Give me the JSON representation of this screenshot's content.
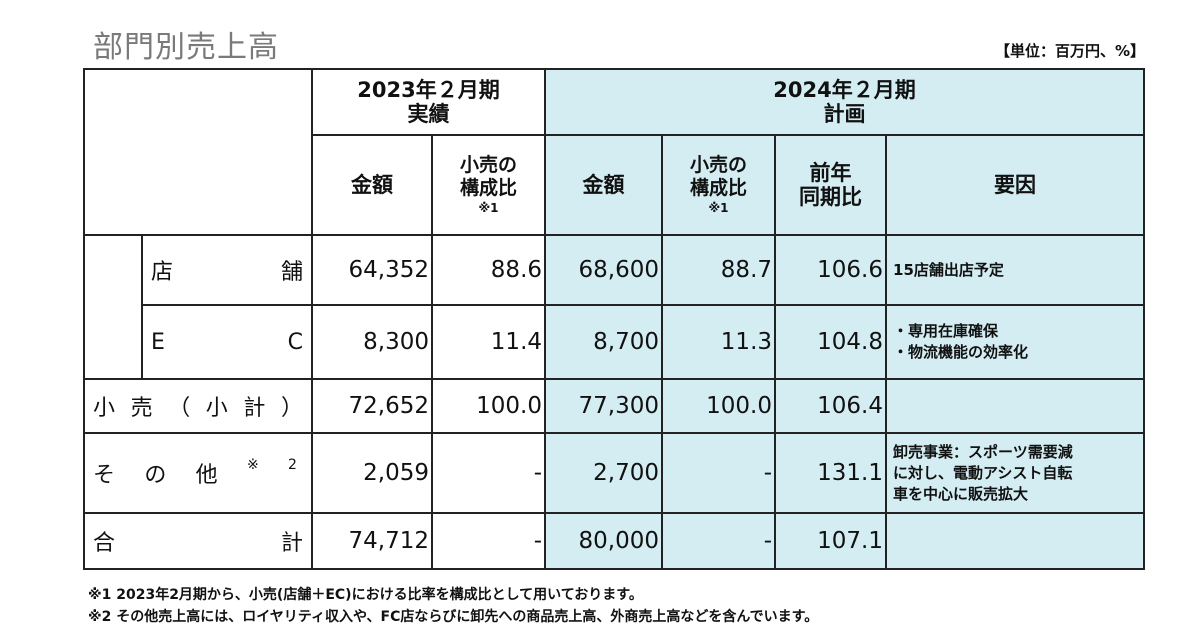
{
  "title": "部門別売上高",
  "unit": "【単位：百万円、%】",
  "header": {
    "fy2023_line1": "2023年２月期",
    "fy2023_line2": "実績",
    "fy2024_line1": "2024年２月期",
    "fy2024_line2": "計画",
    "amount": "金額",
    "ratio_line1": "小売の",
    "ratio_line2": "構成比",
    "ratio_note": "※1",
    "yoy_line1": "前年",
    "yoy_line2": "同期比",
    "factor": "要因"
  },
  "rows": {
    "store": {
      "label_left": "店",
      "label_right": "舗",
      "amt2023": "64,352",
      "ratio2023": "88.6",
      "amt2024": "68,600",
      "ratio2024": "88.7",
      "yoy": "106.6",
      "reason": "15店舗出店予定"
    },
    "ec": {
      "label_left": "E",
      "label_right": "C",
      "amt2023": "8,300",
      "ratio2023": "11.4",
      "amt2024": "8,700",
      "ratio2024": "11.3",
      "yoy": "104.8",
      "reason1": "・専用在庫確保",
      "reason2": "・物流機能の効率化"
    },
    "subtotal": {
      "c1": "小",
      "c2": "売",
      "c3": "（",
      "c4": "小",
      "c5": "計",
      "c6": "）",
      "amt2023": "72,652",
      "ratio2023": "100.0",
      "amt2024": "77,300",
      "ratio2024": "100.0",
      "yoy": "106.4"
    },
    "other": {
      "c1": "そ",
      "c2": "の",
      "c3": "他",
      "mark": "※",
      "mark_num": "2",
      "amt2023": "2,059",
      "ratio2023": "-",
      "amt2024": "2,700",
      "ratio2024": "-",
      "yoy": "131.1",
      "reason1": "卸売事業：スポーツ需要減",
      "reason2": "に対し、電動アシスト自転",
      "reason3": "車を中心に販売拡大"
    },
    "total": {
      "label_left": "合",
      "label_right": "計",
      "amt2023": "74,712",
      "ratio2023": "-",
      "amt2024": "80,000",
      "ratio2024": "-",
      "yoy": "107.1"
    }
  },
  "footnotes": {
    "note1": "※1 2023年2月期から、小売(店舗＋EC)における比率を構成比として用いております。",
    "note2": "※2 その他売上高には、ロイヤリティ収入や、FC店ならびに卸先への商品売上高、外商売上高などを含んでいます。"
  },
  "colors": {
    "plan_bg": "#d3edf2",
    "title": "#7a7a7a",
    "border": "#222222"
  }
}
